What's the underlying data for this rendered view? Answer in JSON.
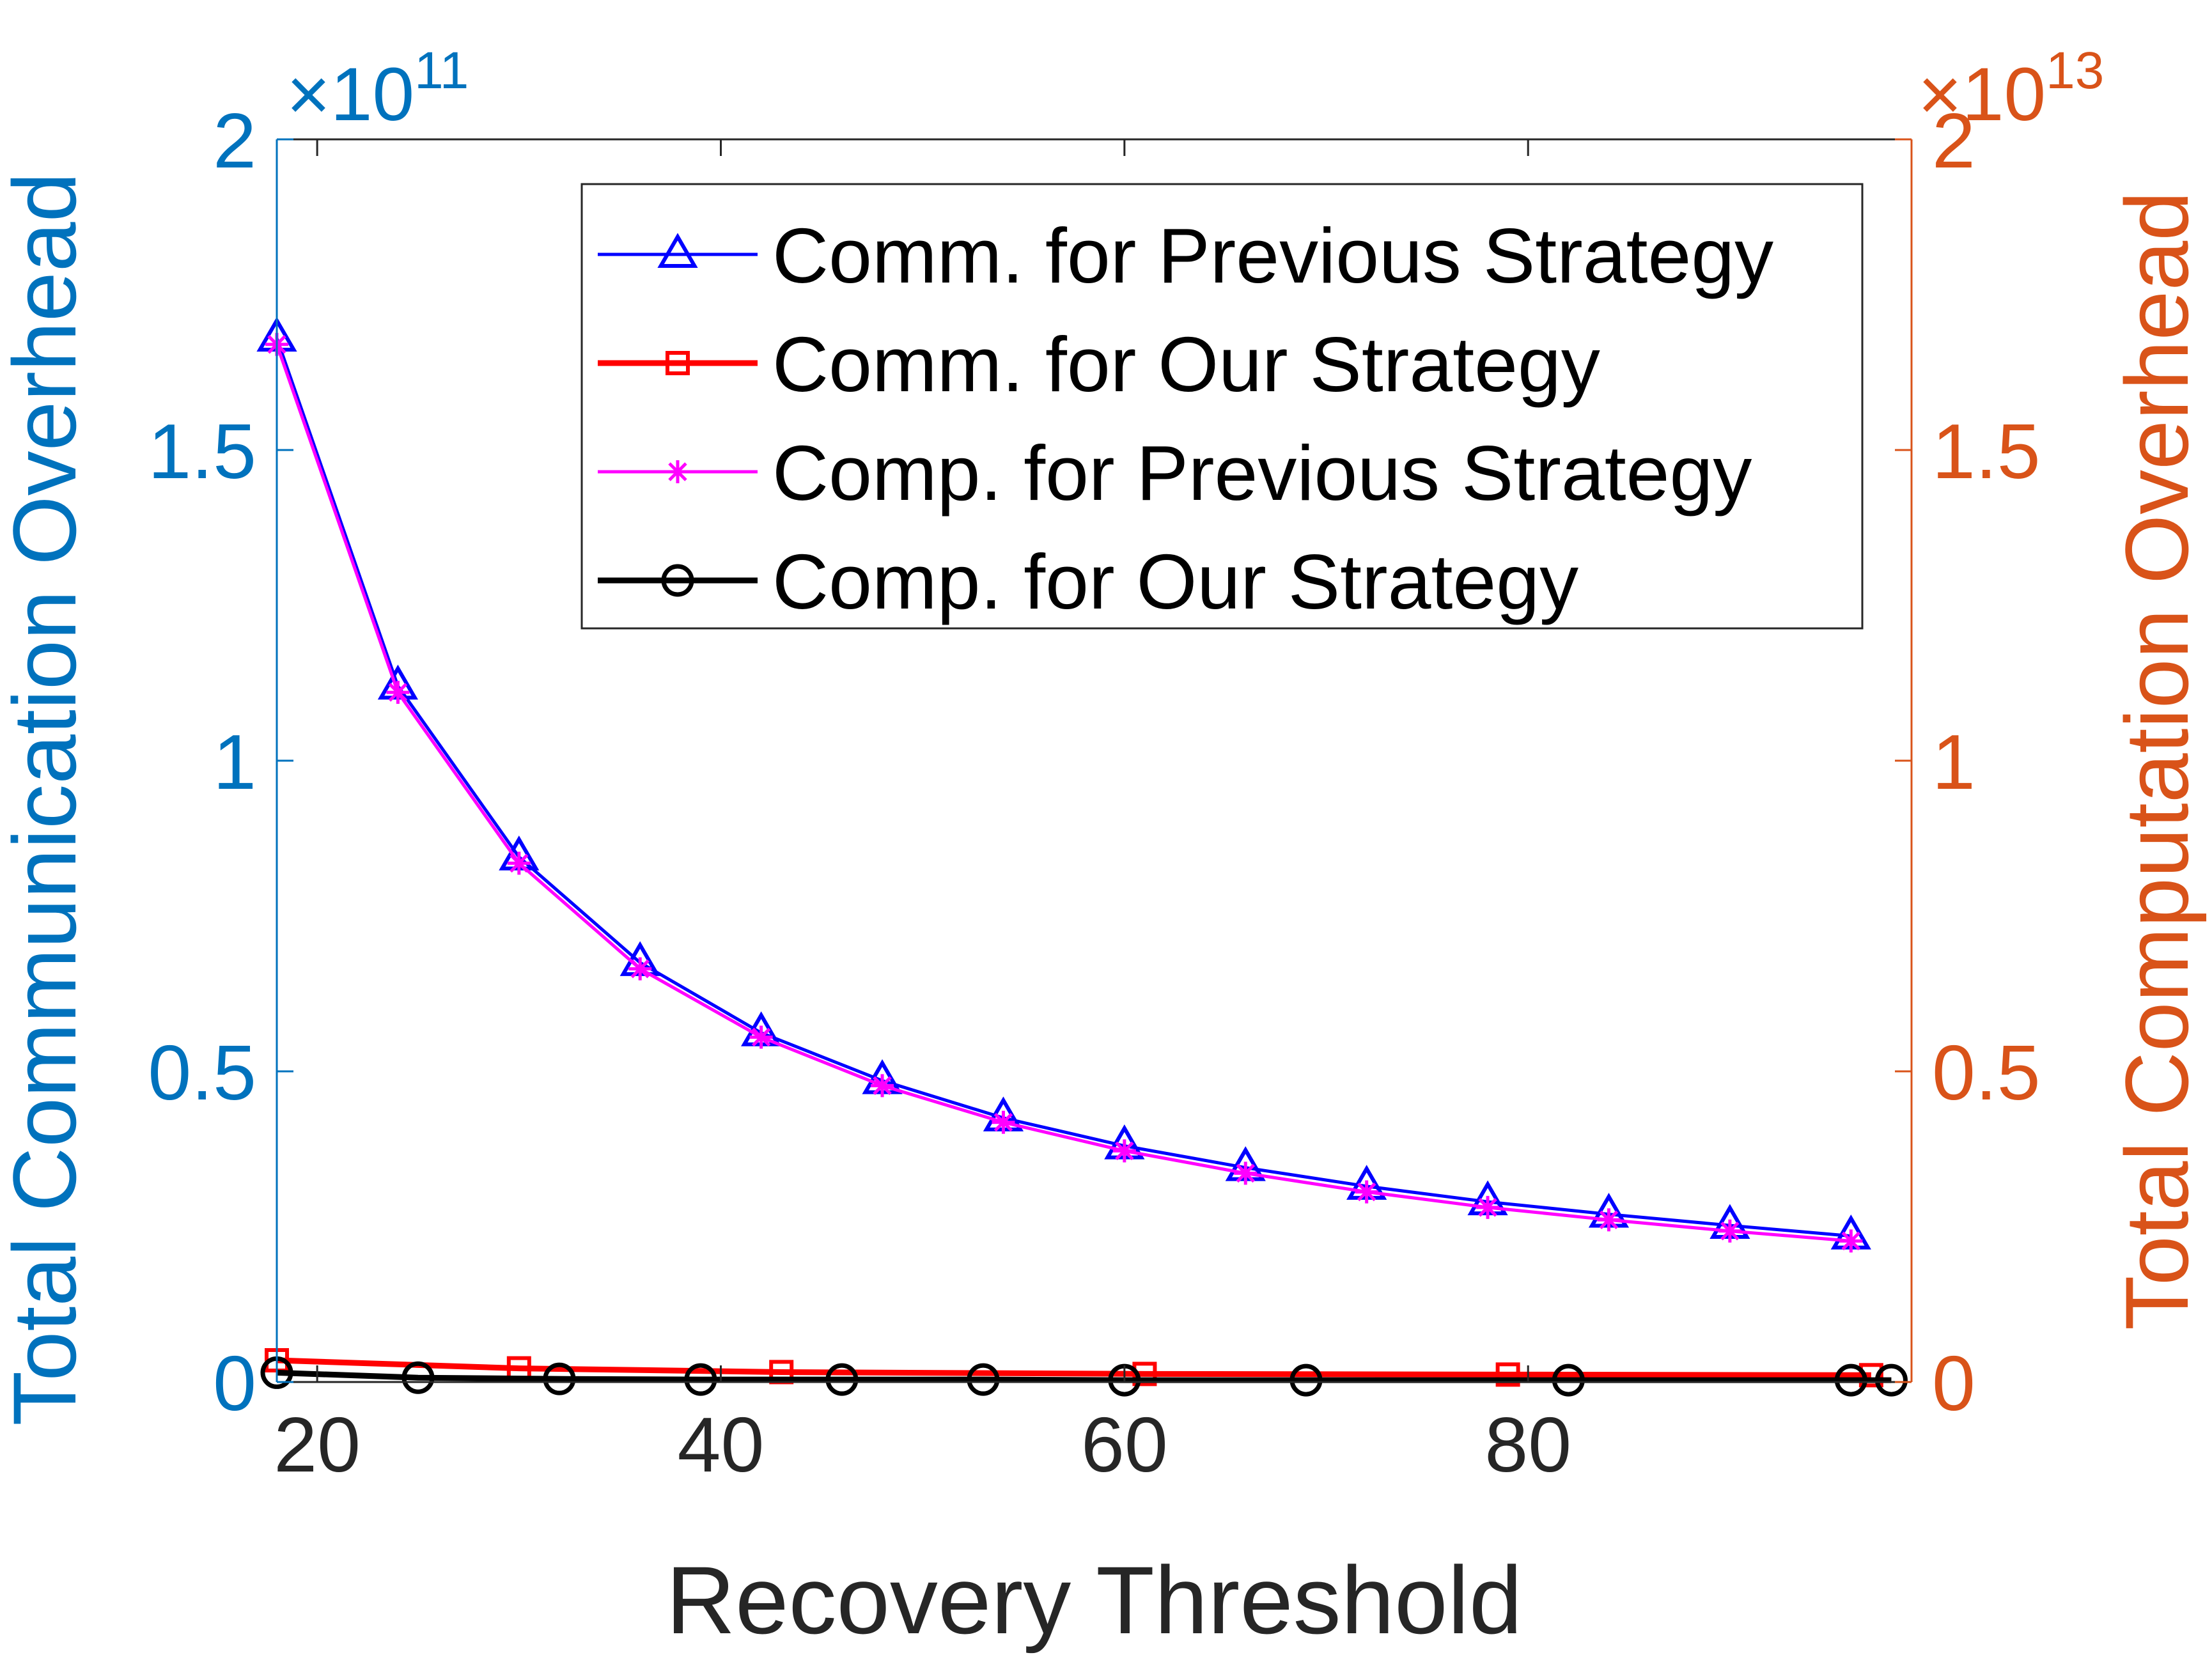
{
  "chart_data": {
    "type": "line",
    "title": "",
    "xlabel": "Recovery Threshold",
    "ylabel_left": "Total Communication Overhead",
    "ylabel_right": "Total Computation Overhead",
    "left_exponent_base": "×10",
    "left_exponent_power": "11",
    "right_exponent_base": "×10",
    "right_exponent_power": "13",
    "xlim": [
      18,
      99
    ],
    "ylim_left": [
      0,
      2
    ],
    "ylim_right": [
      0,
      2
    ],
    "x_ticks": [
      20,
      40,
      60,
      80
    ],
    "x_tick_labels": [
      "20",
      "40",
      "60",
      "80"
    ],
    "y_left_ticks": [
      0,
      0.5,
      1,
      1.5,
      2
    ],
    "y_left_tick_labels": [
      "0",
      "0.5",
      "1",
      "1.5",
      "2"
    ],
    "y_right_ticks": [
      0,
      0.5,
      1,
      1.5,
      2
    ],
    "y_right_tick_labels": [
      "0",
      "0.5",
      "1",
      "1.5",
      "2"
    ],
    "grid": false,
    "legend_position": "top-right",
    "colors": {
      "left_axis": "#0072BD",
      "right_axis": "#D95319",
      "x_axis": "#262626"
    },
    "series": [
      {
        "name": "Comm. for Previous Strategy",
        "axis": "left",
        "color": "#0000FF",
        "marker": "triangle",
        "x": [
          18,
          24,
          30,
          36,
          42,
          48,
          54,
          60,
          66,
          72,
          78,
          84,
          90,
          96
        ],
        "values": [
          1.68,
          1.12,
          0.845,
          0.675,
          0.562,
          0.485,
          0.425,
          0.38,
          0.345,
          0.315,
          0.29,
          0.27,
          0.252,
          0.235
        ]
      },
      {
        "name": "Comm. for Our Strategy",
        "axis": "left",
        "color": "#FF0000",
        "marker": "square",
        "x": [
          18,
          30,
          43,
          61,
          79,
          97
        ],
        "values": [
          0.035,
          0.022,
          0.016,
          0.013,
          0.012,
          0.011
        ]
      },
      {
        "name": "Comp. for Previous Strategy",
        "axis": "right",
        "color": "#FF00FF",
        "marker": "asterisk",
        "x": [
          18,
          24,
          30,
          36,
          42,
          48,
          54,
          60,
          66,
          72,
          78,
          84,
          90,
          96
        ],
        "values": [
          1.67,
          1.11,
          0.835,
          0.665,
          0.555,
          0.477,
          0.418,
          0.372,
          0.336,
          0.306,
          0.281,
          0.261,
          0.243,
          0.227
        ]
      },
      {
        "name": "Comp. for Our Strategy",
        "axis": "right",
        "color": "#000000",
        "marker": "circle",
        "x": [
          18,
          25,
          32,
          39,
          46,
          53,
          60,
          69,
          82,
          96,
          98
        ],
        "values": [
          0.015,
          0.007,
          0.005,
          0.004,
          0.004,
          0.004,
          0.003,
          0.003,
          0.003,
          0.003,
          0.003
        ]
      }
    ]
  }
}
